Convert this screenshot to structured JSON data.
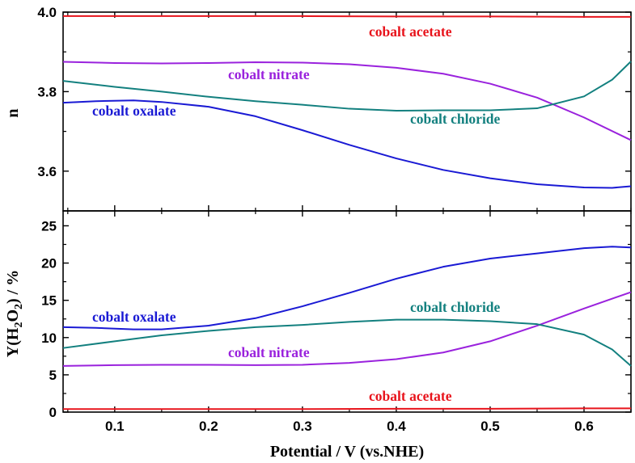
{
  "chart_data": [
    {
      "type": "line",
      "panel": "top",
      "ylabel": "n",
      "ylim": [
        3.5,
        4.0
      ],
      "xlim": [
        0.045,
        0.65
      ],
      "yticks": [
        3.6,
        3.8,
        4.0
      ],
      "ytick_labels": [
        "3.6",
        "3.8",
        "4.0"
      ],
      "series": [
        {
          "name": "cobalt acetate",
          "color": "#e8141c",
          "x": [
            0.045,
            0.1,
            0.2,
            0.3,
            0.4,
            0.5,
            0.6,
            0.65
          ],
          "y": [
            3.99,
            3.99,
            3.99,
            3.99,
            3.989,
            3.989,
            3.988,
            3.988
          ]
        },
        {
          "name": "cobalt nitrate",
          "color": "#9a22dd",
          "x": [
            0.045,
            0.1,
            0.15,
            0.2,
            0.25,
            0.3,
            0.35,
            0.4,
            0.45,
            0.5,
            0.55,
            0.6,
            0.65
          ],
          "y": [
            3.875,
            3.872,
            3.871,
            3.872,
            3.874,
            3.873,
            3.869,
            3.86,
            3.845,
            3.82,
            3.785,
            3.735,
            3.678
          ]
        },
        {
          "name": "cobalt chloride",
          "color": "#13807f",
          "x": [
            0.045,
            0.1,
            0.15,
            0.2,
            0.25,
            0.3,
            0.35,
            0.4,
            0.45,
            0.5,
            0.55,
            0.6,
            0.63,
            0.65
          ],
          "y": [
            3.827,
            3.812,
            3.8,
            3.787,
            3.776,
            3.767,
            3.757,
            3.752,
            3.753,
            3.753,
            3.758,
            3.788,
            3.83,
            3.876
          ]
        },
        {
          "name": "cobalt oxalate",
          "color": "#1a1ad4",
          "x": [
            0.045,
            0.08,
            0.12,
            0.15,
            0.2,
            0.25,
            0.3,
            0.35,
            0.4,
            0.45,
            0.5,
            0.55,
            0.6,
            0.63,
            0.65
          ],
          "y": [
            3.772,
            3.776,
            3.778,
            3.774,
            3.762,
            3.738,
            3.703,
            3.666,
            3.632,
            3.603,
            3.582,
            3.567,
            3.559,
            3.558,
            3.562
          ]
        }
      ],
      "annotations": [
        {
          "text": "cobalt acetate",
          "color": "#e8141c"
        },
        {
          "text": "cobalt nitrate",
          "color": "#9a22dd"
        },
        {
          "text": "cobalt oxalate",
          "color": "#1a1ad4"
        },
        {
          "text": "cobalt chloride",
          "color": "#13807f"
        }
      ]
    },
    {
      "type": "line",
      "panel": "bottom",
      "ylabel_main": "Y(H",
      "ylabel_sub": "2",
      "ylabel_mid": "O",
      "ylabel_sub2": "2",
      "ylabel_end": ") / %",
      "ylim": [
        0,
        27
      ],
      "xlim": [
        0.045,
        0.65
      ],
      "yticks": [
        0,
        5,
        10,
        15,
        20,
        25
      ],
      "ytick_labels": [
        "0",
        "5",
        "10",
        "15",
        "20",
        "25"
      ],
      "xticks": [
        0.1,
        0.2,
        0.3,
        0.4,
        0.5,
        0.6
      ],
      "xtick_labels": [
        "0.1",
        "0.2",
        "0.3",
        "0.4",
        "0.5",
        "0.6"
      ],
      "xlabel": "Potential / V (vs.NHE)",
      "series": [
        {
          "name": "cobalt acetate",
          "color": "#e8141c",
          "x": [
            0.045,
            0.1,
            0.2,
            0.3,
            0.4,
            0.5,
            0.6,
            0.65
          ],
          "y": [
            0.4,
            0.4,
            0.4,
            0.4,
            0.45,
            0.45,
            0.5,
            0.5
          ]
        },
        {
          "name": "cobalt nitrate",
          "color": "#9a22dd",
          "x": [
            0.045,
            0.1,
            0.15,
            0.2,
            0.25,
            0.3,
            0.35,
            0.4,
            0.45,
            0.5,
            0.55,
            0.6,
            0.65
          ],
          "y": [
            6.2,
            6.3,
            6.35,
            6.35,
            6.3,
            6.35,
            6.6,
            7.1,
            8.0,
            9.5,
            11.6,
            13.9,
            16.1
          ]
        },
        {
          "name": "cobalt chloride",
          "color": "#13807f",
          "x": [
            0.045,
            0.1,
            0.15,
            0.2,
            0.25,
            0.3,
            0.35,
            0.4,
            0.45,
            0.5,
            0.55,
            0.6,
            0.63,
            0.65
          ],
          "y": [
            8.6,
            9.5,
            10.3,
            10.9,
            11.4,
            11.7,
            12.1,
            12.4,
            12.4,
            12.2,
            11.8,
            10.4,
            8.4,
            6.2
          ]
        },
        {
          "name": "cobalt oxalate",
          "color": "#1a1ad4",
          "x": [
            0.045,
            0.08,
            0.12,
            0.15,
            0.2,
            0.25,
            0.3,
            0.35,
            0.4,
            0.45,
            0.5,
            0.55,
            0.6,
            0.63,
            0.65
          ],
          "y": [
            11.4,
            11.3,
            11.1,
            11.1,
            11.6,
            12.6,
            14.2,
            16.0,
            17.9,
            19.5,
            20.6,
            21.3,
            22.0,
            22.2,
            22.1
          ]
        }
      ],
      "annotations": [
        {
          "text": "cobalt oxalate",
          "color": "#1a1ad4"
        },
        {
          "text": "cobalt chloride",
          "color": "#13807f"
        },
        {
          "text": "cobalt nitrate",
          "color": "#9a22dd"
        },
        {
          "text": "cobalt acetate",
          "color": "#e8141c"
        }
      ]
    }
  ]
}
